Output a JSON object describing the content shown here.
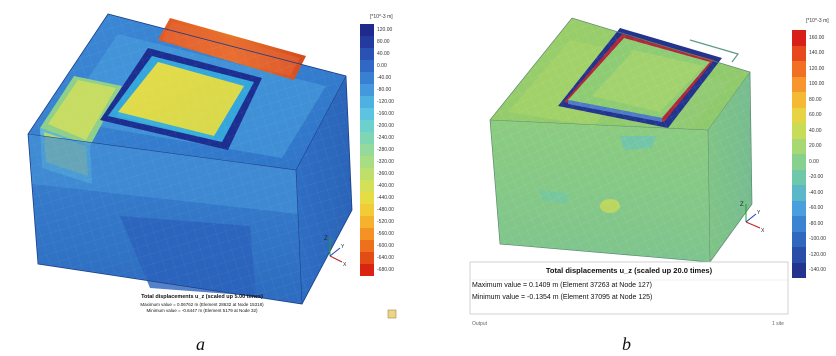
{
  "panel_a": {
    "letter": "a",
    "legend_unit": "[*10^-3 m]",
    "legend_ticks": [
      "120.00",
      "80.00",
      "40.00",
      "0.00",
      "-40.00",
      "-80.00",
      "-120.00",
      "-160.00",
      "-200.00",
      "-240.00",
      "-280.00",
      "-320.00",
      "-360.00",
      "-400.00",
      "-440.00",
      "-480.00",
      "-520.00",
      "-560.00",
      "-600.00",
      "-640.00",
      "-680.00"
    ],
    "legend_colors": [
      "#1e2a8c",
      "#233a9e",
      "#2a52b4",
      "#3168c6",
      "#3a80d2",
      "#4598dc",
      "#4fb0e2",
      "#5cc4e0",
      "#6cd0cc",
      "#7ed6b4",
      "#93da9c",
      "#a9dd84",
      "#bfdf6c",
      "#d4e056",
      "#e6dc44",
      "#f2cc36",
      "#f6b22c",
      "#f49224",
      "#ee701c",
      "#e44c16",
      "#d82410"
    ],
    "caption_title": "Total displacements u_z (scaled up 5.00 times)",
    "caption_max": "Maximum value = 0.06762 m (Element 28632 at Node 15318)",
    "caption_min": "Minimum value = -0.6447 m (Element 5179 at Node 32)"
  },
  "panel_b": {
    "letter": "b",
    "legend_unit": "[*10^-3 m]",
    "legend_ticks": [
      "160.00",
      "140.00",
      "120.00",
      "100.00",
      "80.00",
      "60.00",
      "40.00",
      "20.00",
      "0.00",
      "-20.00",
      "-40.00",
      "-60.00",
      "-80.00",
      "-100.00",
      "-120.00",
      "-140.00"
    ],
    "legend_colors": [
      "#d8201a",
      "#e8481e",
      "#f27024",
      "#f6962c",
      "#f4ba36",
      "#e6d444",
      "#c8dc5a",
      "#a6d874",
      "#88d08e",
      "#70c8aa",
      "#5cb8c8",
      "#4aa0dc",
      "#3c84d2",
      "#3068c0",
      "#2a4ea8",
      "#22348e"
    ],
    "caption_title": "Total displacements u_z (scaled up 20.0 times)",
    "caption_max": "Maximum value = 0.1409 m (Element 37263 at Node 127)",
    "caption_min": "Minimum value = -0.1354 m (Element 37095 at Node 125)",
    "footer_left": "Output",
    "footer_right": "1 site"
  },
  "axes": {
    "z": "Z",
    "y": "Y",
    "x": "X"
  }
}
